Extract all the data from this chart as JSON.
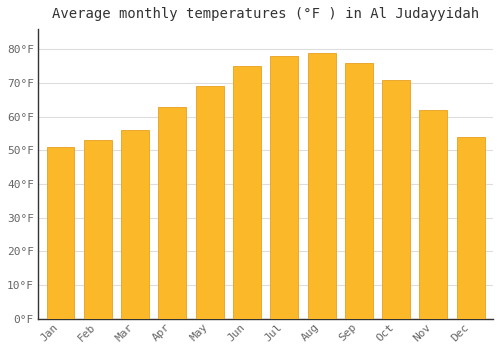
{
  "title": "Average monthly temperatures (°F ) in Al Judayyidah",
  "months": [
    "Jan",
    "Feb",
    "Mar",
    "Apr",
    "May",
    "Jun",
    "Jul",
    "Aug",
    "Sep",
    "Oct",
    "Nov",
    "Dec"
  ],
  "values": [
    51,
    53,
    56,
    63,
    69,
    75,
    78,
    79,
    76,
    71,
    62,
    54
  ],
  "bar_color_face": "#FBB829",
  "bar_color_edge": "#E8A020",
  "background_color": "#FFFFFF",
  "grid_color": "#DDDDDD",
  "ytick_labels": [
    "0°F",
    "10°F",
    "20°F",
    "30°F",
    "40°F",
    "50°F",
    "60°F",
    "70°F",
    "80°F"
  ],
  "ytick_values": [
    0,
    10,
    20,
    30,
    40,
    50,
    60,
    70,
    80
  ],
  "ylim": [
    0,
    86
  ],
  "title_fontsize": 10,
  "tick_fontsize": 8,
  "tick_color": "#666666",
  "spine_color": "#333333"
}
